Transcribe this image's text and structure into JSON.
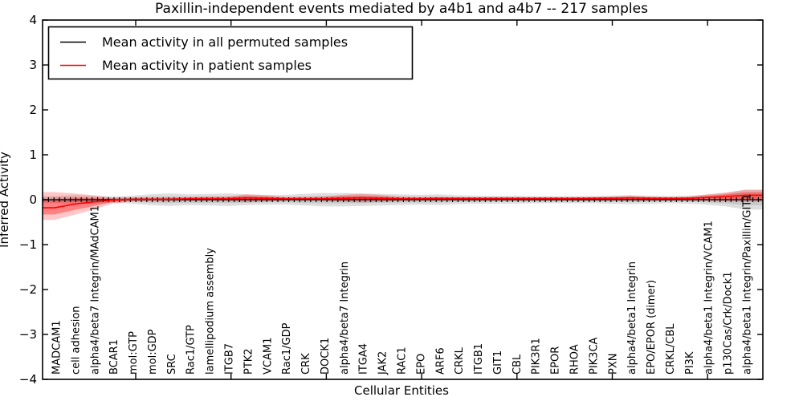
{
  "figure": {
    "background": "#ffffff"
  },
  "chart_data": {
    "type": "line",
    "title": "Paxillin-independent events mediated by a4b1 and a4b7 -- 217 samples",
    "xlabel": "Cellular Entities",
    "ylabel": "Inferred Activity",
    "ylim": [
      -4,
      4
    ],
    "ytick_values": [
      4,
      3,
      2,
      1,
      0,
      -1,
      -2,
      -3,
      -4
    ],
    "yticks": [
      "4",
      "3",
      "2",
      "1",
      "0",
      "−1",
      "−2",
      "−3",
      "−4"
    ],
    "grid": false,
    "legend_position": "upper left",
    "legend": [
      {
        "label": "Mean activity in all permuted samples",
        "color": "#000000"
      },
      {
        "label": "Mean activity in patient samples",
        "color": "#ff0000"
      }
    ],
    "categories": [
      "MADCAM1",
      "cell adhesion",
      "alpha4/beta7 Integrin/MAdCAM1",
      "BCAR1",
      "mol:GTP",
      "mol:GDP",
      "SRC",
      "Rac1/GTP",
      "lamellipodium assembly",
      "ITGB7",
      "PTK2",
      "VCAM1",
      "Rac1/GDP",
      "CRK",
      "DOCK1",
      "alpha4/beta7 Integrin",
      "ITGA4",
      "JAK2",
      "RAC1",
      "EPO",
      "ARF6",
      "CRKL",
      "ITGB1",
      "GIT1",
      "CBL",
      "PIK3R1",
      "EPOR",
      "RHOA",
      "PIK3CA",
      "PXN",
      "alpha4/beta1 Integrin",
      "EPO/EPOR (dimer)",
      "CRKL/CBL",
      "PI3K",
      "alpha4/beta1 Integrin/VCAM1",
      "p130Cas/Crk/Dock1",
      "alpha4/beta1 Integrin/Paxillin/GIT1"
    ],
    "series": [
      {
        "name": "Mean activity in all permuted samples",
        "color": "#000000",
        "marker": "|",
        "values": [
          0,
          0,
          0,
          0,
          0,
          0,
          0,
          0,
          0,
          0,
          0,
          0,
          0,
          0,
          0,
          0,
          0,
          0,
          0,
          0,
          0,
          0,
          0,
          0,
          0,
          0,
          0,
          0,
          0,
          0,
          0,
          0,
          0,
          0,
          0,
          0,
          0
        ],
        "band_upper": [
          0.08,
          0.1,
          0.09,
          0.07,
          0.09,
          0.12,
          0.14,
          0.12,
          0.13,
          0.14,
          0.12,
          0.11,
          0.11,
          0.13,
          0.15,
          0.15,
          0.14,
          0.13,
          0.12,
          0.11,
          0.12,
          0.1,
          0.09,
          0.09,
          0.09,
          0.08,
          0.08,
          0.08,
          0.08,
          0.09,
          0.1,
          0.09,
          0.08,
          0.09,
          0.11,
          0.15,
          0.22
        ],
        "band_lower": [
          -0.08,
          -0.1,
          -0.09,
          -0.07,
          -0.09,
          -0.12,
          -0.14,
          -0.12,
          -0.13,
          -0.14,
          -0.12,
          -0.11,
          -0.11,
          -0.13,
          -0.15,
          -0.15,
          -0.14,
          -0.13,
          -0.12,
          -0.11,
          -0.12,
          -0.1,
          -0.09,
          -0.09,
          -0.09,
          -0.08,
          -0.08,
          -0.08,
          -0.08,
          -0.09,
          -0.1,
          -0.09,
          -0.08,
          -0.09,
          -0.11,
          -0.15,
          -0.22
        ]
      },
      {
        "name": "Mean activity in patient samples",
        "color": "#ff0000",
        "marker": "none",
        "values": [
          -0.18,
          -0.1,
          -0.05,
          -0.01,
          0.01,
          0.01,
          0.01,
          0.02,
          0.02,
          0.02,
          0.04,
          0.03,
          0.02,
          0.02,
          0.02,
          0.03,
          0.04,
          0.03,
          0.02,
          0.02,
          0.03,
          0.03,
          0.03,
          0.03,
          0.03,
          0.03,
          0.03,
          0.03,
          0.03,
          0.03,
          0.04,
          0.03,
          0.03,
          0.03,
          0.05,
          0.07,
          0.1
        ],
        "band_upper": [
          0.17,
          0.14,
          0.1,
          0.05,
          0.05,
          0.05,
          0.05,
          0.06,
          0.07,
          0.07,
          0.12,
          0.1,
          0.06,
          0.06,
          0.07,
          0.11,
          0.13,
          0.11,
          0.07,
          0.06,
          0.06,
          0.05,
          0.05,
          0.05,
          0.05,
          0.05,
          0.05,
          0.05,
          0.06,
          0.07,
          0.09,
          0.07,
          0.06,
          0.07,
          0.12,
          0.16,
          0.22
        ],
        "band_lower": [
          -0.45,
          -0.34,
          -0.22,
          -0.09,
          -0.04,
          -0.03,
          -0.03,
          -0.03,
          -0.03,
          -0.03,
          -0.06,
          -0.04,
          -0.02,
          -0.02,
          -0.03,
          -0.05,
          -0.06,
          -0.05,
          -0.03,
          -0.02,
          -0.02,
          -0.02,
          -0.02,
          -0.02,
          -0.02,
          -0.02,
          -0.02,
          -0.02,
          -0.02,
          -0.02,
          -0.02,
          -0.02,
          -0.02,
          -0.02,
          -0.03,
          -0.04,
          -0.05
        ]
      }
    ]
  }
}
